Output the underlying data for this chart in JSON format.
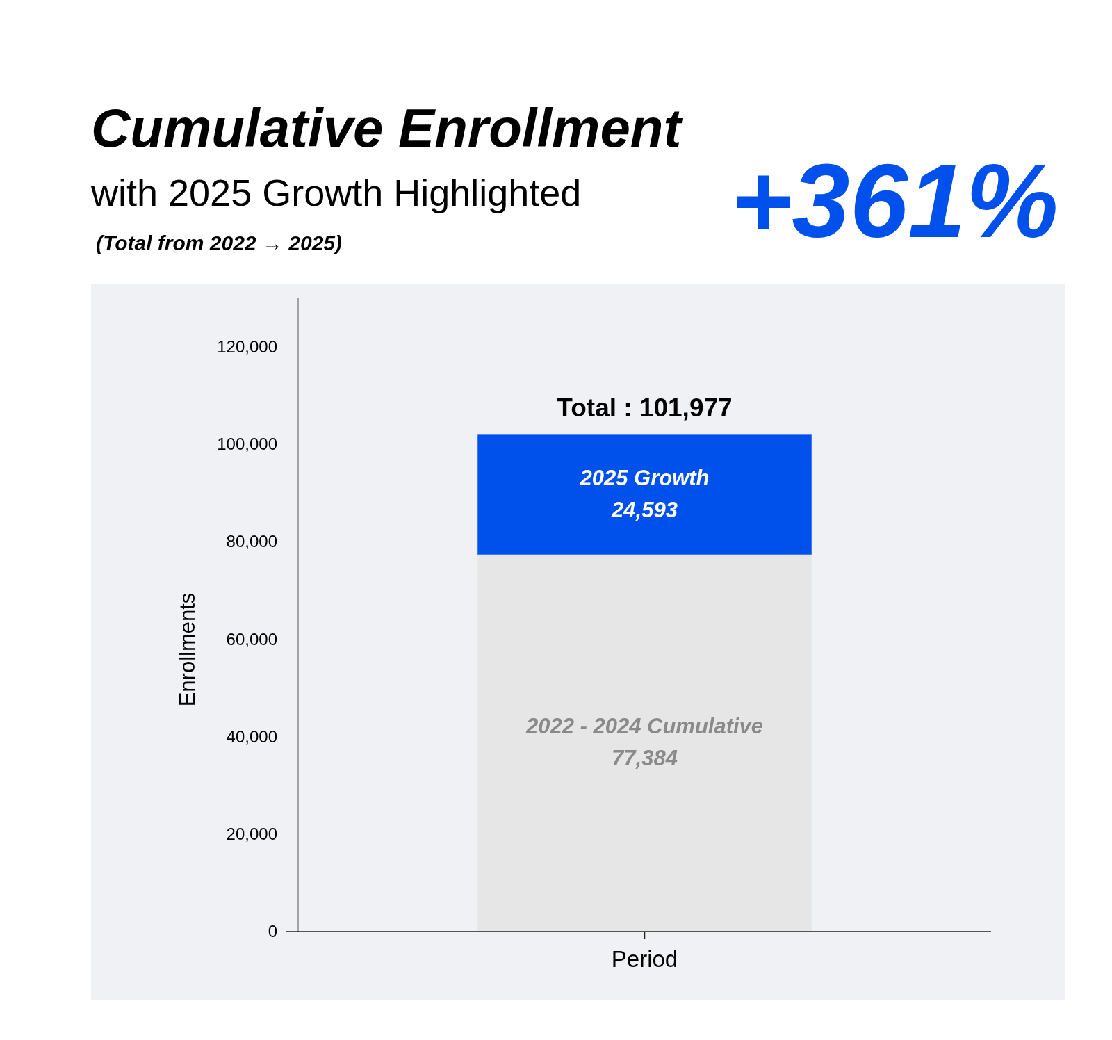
{
  "chart_data": {
    "type": "bar",
    "title": "Cumulative Enrollment",
    "subtitle": "with 2025 Growth Highlighted",
    "annotations": [
      "(Total from 2022 → 2025)",
      "+361%"
    ],
    "xlabel": "Period",
    "ylabel": "Enrollments",
    "categories": [
      null
    ],
    "stacked": true,
    "series": [
      {
        "name": "2022 - 2024 Cumulative",
        "color": "#e6e6e6",
        "values": [
          77384
        ],
        "value_labels": [
          "77,384"
        ]
      },
      {
        "name": "2025 Growth",
        "color": "#0050eb",
        "values": [
          24593
        ],
        "value_labels": [
          "24,593"
        ]
      }
    ],
    "totals": [
      "Total : 101,977"
    ],
    "ylim": [
      0,
      130000
    ],
    "yticks": [
      {
        "value": 0,
        "label": "0"
      },
      {
        "value": 20000,
        "label": "20,000"
      },
      {
        "value": 40000,
        "label": "40,000"
      },
      {
        "value": 60000,
        "label": "60,000"
      },
      {
        "value": 80000,
        "label": "80,000"
      },
      {
        "value": 100000,
        "label": "100,000"
      },
      {
        "value": 120000,
        "label": "120,000"
      }
    ]
  }
}
